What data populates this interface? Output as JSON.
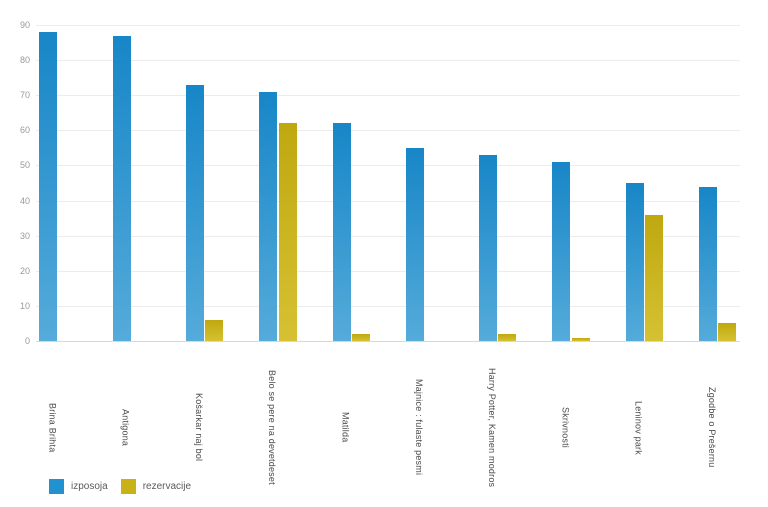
{
  "chart_data": {
    "type": "bar",
    "title": "",
    "xlabel": "",
    "ylabel": "",
    "categories": [
      "Brina Brihta",
      "Antigona",
      "Košarkar naj bol",
      "Belo se pere na devetdeset",
      "Matilda",
      "Majnice :  fulaste pesmi",
      "Harry Potter, Kamen modros",
      "Skrivnosti",
      "Leninov park",
      "Zgodbe o Prešernu"
    ],
    "series": [
      {
        "name": "izposoja",
        "values": [
          88,
          87,
          73,
          71,
          62,
          55,
          53,
          51,
          45,
          44
        ],
        "color_top": "#1786c7",
        "color_bottom": "#55abda",
        "legend_color": "#2191cf"
      },
      {
        "name": "rezervacije",
        "values": [
          0,
          0,
          6,
          62,
          2,
          0,
          2,
          1,
          36,
          5
        ],
        "color_top": "#bfa80f",
        "color_bottom": "#d6c133",
        "legend_color": "#c9b118"
      }
    ],
    "ylim": [
      0,
      90
    ],
    "ytick_step": 10,
    "yticks": [
      "0",
      "10",
      "20",
      "30",
      "40",
      "50",
      "60",
      "70",
      "80",
      "90"
    ],
    "grid": "horizontal",
    "legend_position": "bottom-left",
    "background_color": "#ffffff",
    "gridline_color": "#ececec"
  }
}
